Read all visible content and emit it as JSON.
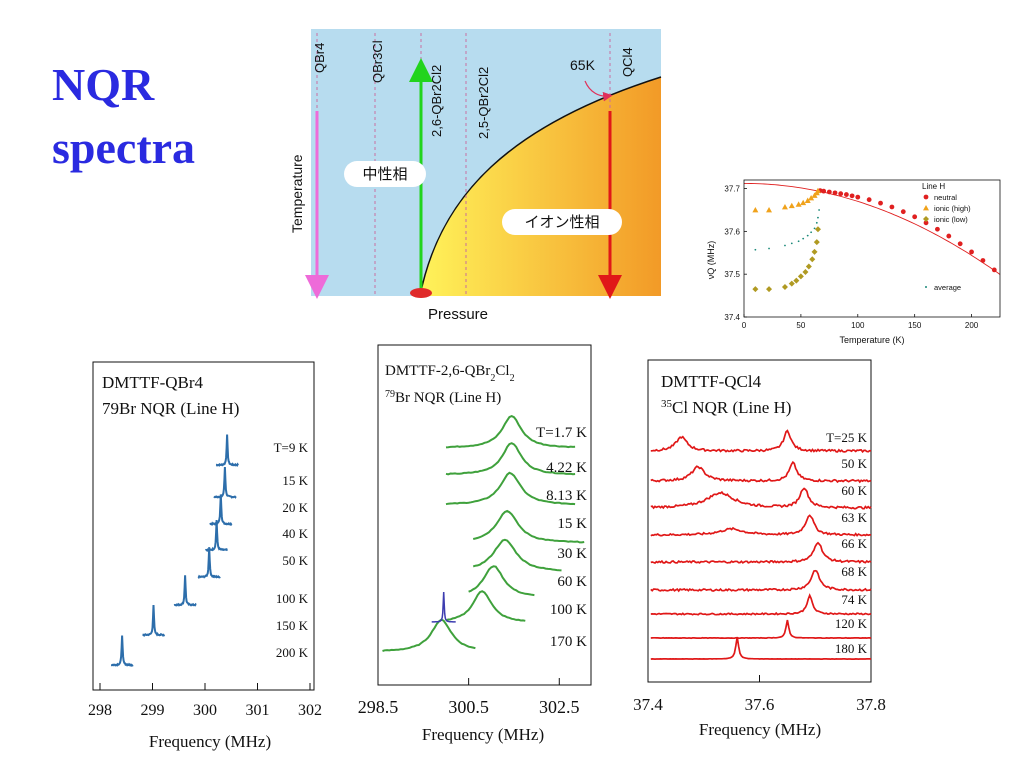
{
  "slide": {
    "title_line1": "NQR",
    "title_line2": "spectra"
  },
  "chart_data": [
    {
      "type": "diagram",
      "xlabel": "Pressure",
      "ylabel": "Temperature",
      "compounds": [
        "QBr4",
        "QBr3Cl",
        "2,6-QBr2Cl2",
        "2,5-QBr2Cl2",
        "QCl4"
      ],
      "regions": {
        "neutral": "中性相",
        "ionic": "イオン性相"
      },
      "annotation": "65K",
      "colors": {
        "background": "#b7dcef",
        "ionic_light": "#fff35a",
        "ionic_dark": "#f29a27",
        "pink": "#ee6bd9",
        "green": "#22d41d",
        "red": "#e01818"
      }
    },
    {
      "type": "scatter",
      "title": "Line H",
      "xlabel": "Temperature (K)",
      "ylabel": "νQ (MHz)",
      "xlim": [
        0,
        225
      ],
      "ylim": [
        37.4,
        37.72
      ],
      "xticks": [
        0,
        50,
        100,
        150,
        200
      ],
      "yticks": [
        37.4,
        37.5,
        37.6,
        37.7
      ],
      "legend_position": "top-right",
      "series": [
        {
          "name": "neutral",
          "color": "#e02020",
          "x": [
            67,
            70,
            75,
            80,
            85,
            90,
            95,
            100,
            110,
            120,
            130,
            140,
            150,
            160,
            170,
            180,
            190,
            200,
            210,
            220
          ],
          "y": [
            37.695,
            37.694,
            37.692,
            37.69,
            37.688,
            37.686,
            37.683,
            37.68,
            37.674,
            37.666,
            37.657,
            37.646,
            37.634,
            37.62,
            37.605,
            37.589,
            37.571,
            37.552,
            37.532,
            37.51
          ]
        },
        {
          "name": "ionic (high)",
          "color": "#f0a21b",
          "x": [
            10,
            22,
            36,
            42,
            48,
            52,
            56,
            59,
            62,
            64,
            65
          ],
          "y": [
            37.65,
            37.65,
            37.657,
            37.66,
            37.663,
            37.667,
            37.672,
            37.678,
            37.684,
            37.69,
            37.695
          ]
        },
        {
          "name": "ionic (low)",
          "color": "#b09a22",
          "x": [
            10,
            22,
            36,
            42,
            46,
            50,
            54,
            57,
            60,
            62,
            64,
            65
          ],
          "y": [
            37.465,
            37.465,
            37.47,
            37.478,
            37.485,
            37.495,
            37.505,
            37.518,
            37.535,
            37.552,
            37.575,
            37.605
          ]
        },
        {
          "name": "average",
          "color": "#1c8a7a",
          "x": [
            10,
            22,
            36,
            42,
            48,
            52,
            56,
            59,
            62,
            64,
            65,
            66
          ],
          "y": [
            37.557,
            37.56,
            37.567,
            37.572,
            37.577,
            37.583,
            37.59,
            37.598,
            37.607,
            37.62,
            37.632,
            37.65
          ]
        }
      ],
      "fit_curve": {
        "color": "#e02020"
      }
    },
    {
      "type": "line",
      "title_line1": "DMTTF-QBr4",
      "title_line2": "79Br NQR (Line H)",
      "xlabel": "Frequency (MHz)",
      "xlim": [
        298,
        302
      ],
      "xticks": [
        298,
        299,
        300,
        301,
        302
      ],
      "temperature_labels": [
        "T=9 K",
        "15 K",
        "20 K",
        "40 K",
        "50 K",
        "100 K",
        "150 K",
        "200 K"
      ],
      "peak_positions": [
        300.42,
        300.38,
        300.3,
        300.22,
        300.08,
        299.62,
        299.02,
        298.42
      ],
      "color": "#2d6eab"
    },
    {
      "type": "line",
      "title_line1": "DMTTF-2,6-QBr2Cl2",
      "title_line2": "79Br NQR (Line H)",
      "xlabel": "Frequency (MHz)",
      "xlim": [
        298.5,
        303.2
      ],
      "xticks": [
        298.5,
        300.5,
        302.5
      ],
      "temperature_labels": [
        "T=1.7 K",
        "4.22 K",
        "8.13 K",
        "15 K",
        "30 K",
        "60 K",
        "100 K",
        "170 K"
      ],
      "peak_positions": [
        301.45,
        301.45,
        301.42,
        301.35,
        301.3,
        301.05,
        300.8,
        299.9
      ],
      "color": "#3fa13c"
    },
    {
      "type": "line",
      "title_line1": "DMTTF-QCl4",
      "title_line2": "35Cl NQR (Line H)",
      "xlabel": "Frequency (MHz)",
      "xlim": [
        37.4,
        37.8
      ],
      "xticks": [
        37.4,
        37.6,
        37.8
      ],
      "temperature_labels": [
        "T=25 K",
        "50 K",
        "60 K",
        "63 K",
        "66 K",
        "68 K",
        "74 K",
        "120 K",
        "180 K"
      ],
      "color": "#e01818"
    }
  ]
}
